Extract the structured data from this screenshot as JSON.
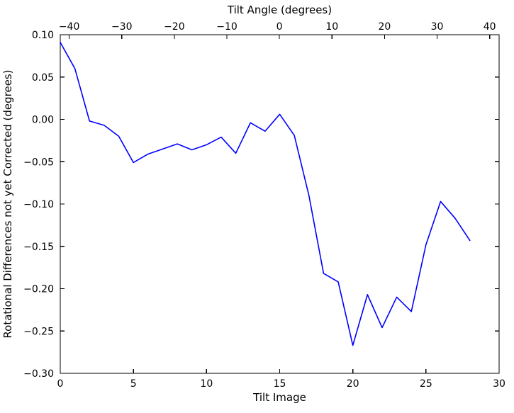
{
  "figure": {
    "background": "#ffffff"
  },
  "chart_data": {
    "type": "line",
    "title": "",
    "top_xlabel": "Tilt Angle (degrees)",
    "xlabel": "Tilt Image",
    "ylabel": "Rotational Differences not yet Corrected (degrees)",
    "x": [
      0,
      1,
      2,
      3,
      4,
      5,
      6,
      7,
      8,
      9,
      10,
      11,
      12,
      13,
      14,
      15,
      16,
      17,
      18,
      19,
      20,
      21,
      22,
      23,
      24,
      25,
      26,
      27,
      28
    ],
    "series": [
      {
        "name": "rotational_difference",
        "color": "#0000ff",
        "values": [
          0.091,
          0.06,
          -0.002,
          -0.007,
          -0.02,
          -0.051,
          -0.041,
          -0.035,
          -0.029,
          -0.036,
          -0.03,
          -0.021,
          -0.04,
          -0.004,
          -0.014,
          0.006,
          -0.019,
          -0.09,
          -0.182,
          -0.192,
          -0.267,
          -0.207,
          -0.246,
          -0.21,
          -0.227,
          -0.148,
          -0.097,
          -0.117,
          -0.143
        ]
      }
    ],
    "xlim": [
      0,
      30
    ],
    "ylim": [
      -0.3,
      0.1
    ],
    "top_xlim": [
      -41.7,
      41.8
    ],
    "x_ticks": {
      "values": [
        0,
        5,
        10,
        15,
        20,
        25,
        30
      ],
      "labels": [
        "0",
        "5",
        "10",
        "15",
        "20",
        "25",
        "30"
      ]
    },
    "y_ticks": {
      "values": [
        0.1,
        0.05,
        0.0,
        -0.05,
        -0.1,
        -0.15,
        -0.2,
        -0.25,
        -0.3
      ],
      "labels": [
        "0.10",
        "0.05",
        "0.00",
        "−0.05",
        "−0.10",
        "−0.15",
        "−0.20",
        "−0.25",
        "−0.30"
      ]
    },
    "top_x_ticks": {
      "values": [
        -40,
        -30,
        -20,
        -10,
        0,
        10,
        20,
        30,
        40
      ],
      "labels": [
        "−40",
        "−30",
        "−20",
        "−10",
        "0",
        "10",
        "20",
        "30",
        "40"
      ]
    },
    "grid": false,
    "legend": null,
    "axis_color": "#000000",
    "tick_direction": "in"
  }
}
